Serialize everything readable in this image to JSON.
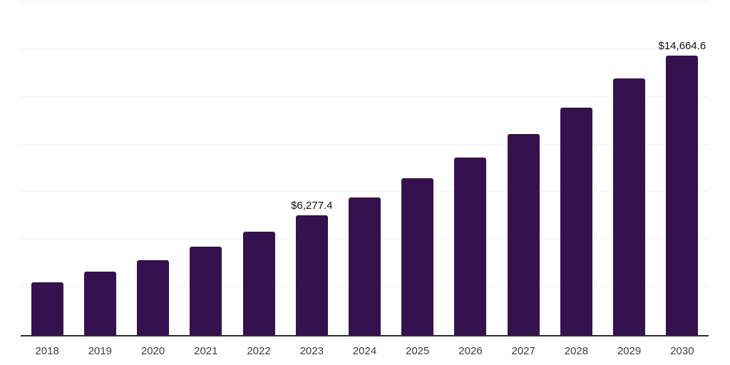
{
  "chart_data": {
    "type": "bar",
    "title": "",
    "xlabel": "",
    "ylabel": "",
    "categories": [
      "2018",
      "2019",
      "2020",
      "2021",
      "2022",
      "2023",
      "2024",
      "2025",
      "2026",
      "2027",
      "2028",
      "2029",
      "2030"
    ],
    "values": [
      2770,
      3320,
      3920,
      4640,
      5410,
      6277.4,
      7210,
      8220,
      9330,
      10540,
      11920,
      13470,
      14664.6
    ],
    "point_labels": [
      "",
      "",
      "",
      "",
      "",
      "$6,277.4",
      "",
      "",
      "",
      "",
      "",
      "",
      "$14,664.6"
    ],
    "ylim": [
      0,
      17500
    ],
    "gridline_interval": 2500,
    "grid": "horizontal",
    "legend_position": "none",
    "y_tick_labels_visible": false
  },
  "style": {
    "bar_color": "#361150",
    "gridline_color": "#f2f2f2",
    "axis_line_color": "#2e2e2e",
    "tick_label_color": "#3d3d3d",
    "data_label_color": "#111111",
    "background_color": "#ffffff"
  }
}
